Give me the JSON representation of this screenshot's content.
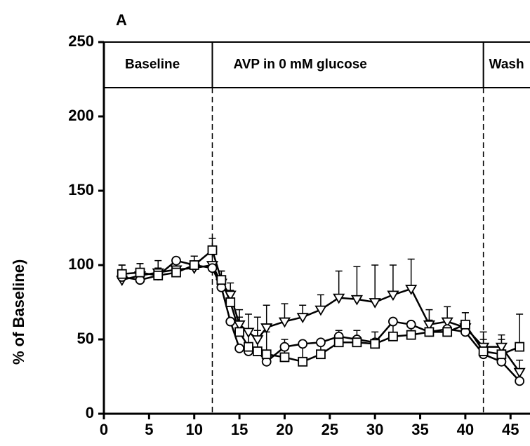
{
  "chart_data": {
    "type": "line",
    "panel_label": "A",
    "ylabel": "% of Baseline)",
    "x": [
      2,
      4,
      6,
      8,
      10,
      12,
      13,
      14,
      15,
      16,
      17,
      18,
      20,
      22,
      24,
      26,
      28,
      30,
      32,
      34,
      36,
      38,
      40,
      42,
      44,
      46
    ],
    "series": [
      {
        "marker": "triangle",
        "color": "#000000",
        "values": [
          90,
          93,
          95,
          97,
          98,
          100,
          88,
          80,
          60,
          55,
          50,
          58,
          62,
          65,
          70,
          78,
          77,
          75,
          80,
          84,
          60,
          62,
          58,
          45,
          45,
          28
        ],
        "errors": [
          10,
          8,
          8,
          8,
          8,
          10,
          8,
          8,
          10,
          12,
          15,
          15,
          12,
          8,
          10,
          18,
          22,
          25,
          20,
          20,
          10,
          10,
          10,
          10,
          8,
          8
        ]
      },
      {
        "marker": "circle",
        "color": "#000000",
        "values": [
          92,
          90,
          93,
          103,
          100,
          98,
          85,
          62,
          44,
          42,
          42,
          35,
          45,
          47,
          48,
          52,
          50,
          48,
          62,
          60,
          55,
          57,
          55,
          40,
          35,
          22
        ]
      },
      {
        "marker": "square",
        "color": "#000000",
        "values": [
          94,
          95,
          93,
          95,
          100,
          110,
          90,
          75,
          55,
          45,
          42,
          40,
          38,
          35,
          40,
          48,
          48,
          47,
          52,
          53,
          55,
          55,
          60,
          42,
          40,
          45
        ],
        "errors": [
          6,
          6,
          5,
          6,
          6,
          8,
          6,
          8,
          10,
          12,
          14,
          15,
          12,
          10,
          8,
          8,
          8,
          8,
          10,
          8,
          8,
          8,
          8,
          8,
          10,
          22
        ]
      }
    ],
    "phases": [
      {
        "label": "Baseline",
        "start": 0
      },
      {
        "label": "AVP in 0 mM glucose",
        "start": 12
      },
      {
        "label": "Wash",
        "start": 42
      }
    ],
    "xlim": [
      0,
      47
    ],
    "ylim": [
      0,
      250
    ],
    "xticks": [
      0,
      5,
      10,
      15,
      20,
      25,
      30,
      35,
      40,
      45
    ],
    "yticks": [
      0,
      50,
      100,
      150,
      200,
      250
    ]
  }
}
